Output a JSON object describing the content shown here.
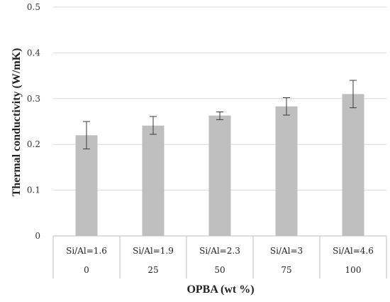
{
  "chart_data": {
    "type": "bar",
    "categories": [
      {
        "primary": "Si/Al=1.6",
        "secondary": "0"
      },
      {
        "primary": "Si/Al=1.9",
        "secondary": "25"
      },
      {
        "primary": "Si/Al=2.3",
        "secondary": "50"
      },
      {
        "primary": "Si/Al=3",
        "secondary": "75"
      },
      {
        "primary": "Si/Al=4.6",
        "secondary": "100"
      }
    ],
    "values": [
      0.22,
      0.241,
      0.263,
      0.283,
      0.31
    ],
    "error_low": [
      0.19,
      0.222,
      0.254,
      0.264,
      0.28
    ],
    "error_high": [
      0.25,
      0.261,
      0.271,
      0.302,
      0.34
    ],
    "title": "",
    "xlabel": "OPBA (wt %)",
    "ylabel": "Thermal conductivity (W/mK)",
    "ylim": [
      0,
      0.5
    ],
    "yticks": [
      {
        "value": 0,
        "label": "0"
      },
      {
        "value": 0.1,
        "label": "0.1"
      },
      {
        "value": 0.2,
        "label": "0.2"
      },
      {
        "value": 0.3,
        "label": "0.3"
      },
      {
        "value": 0.4,
        "label": "0.4"
      },
      {
        "value": 0.5,
        "label": "0.5"
      }
    ],
    "grid": true,
    "legend": "none",
    "colors": {
      "bar": "#bfbfbf",
      "grid": "#d9d9d9",
      "axis": "#bfbfbf",
      "error_bar": "#3a3a3a"
    }
  }
}
